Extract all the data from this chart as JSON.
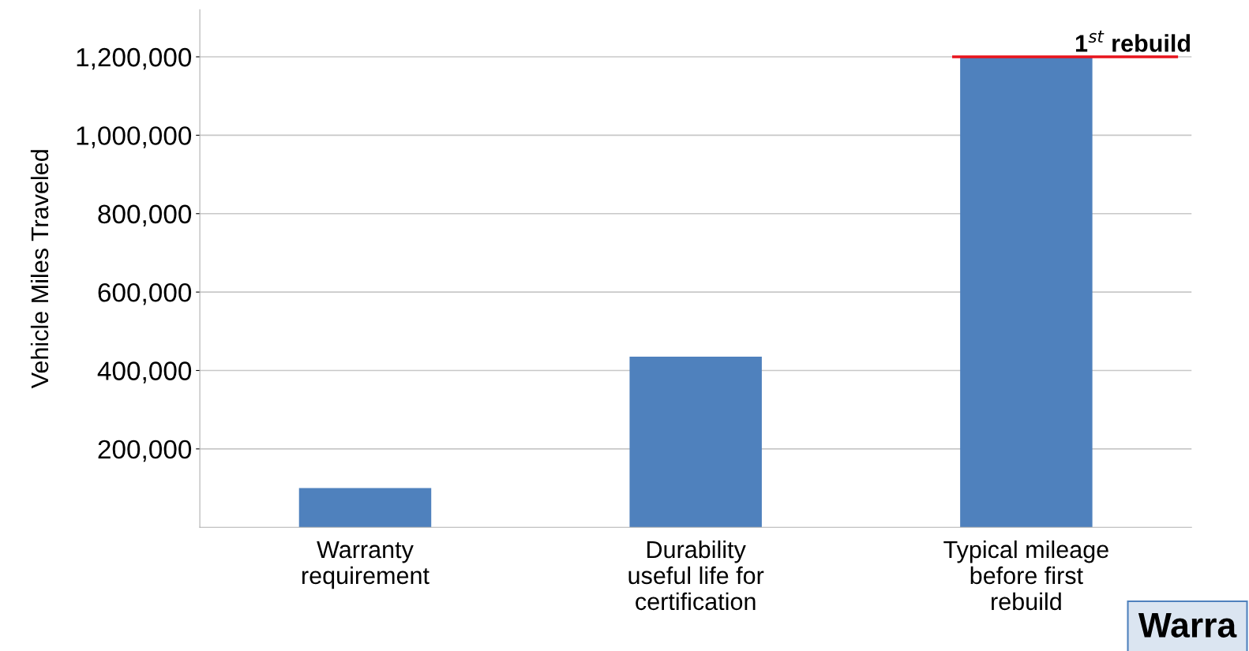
{
  "chart_data": {
    "type": "bar",
    "ylabel": "Vehicle Miles Traveled",
    "categories": [
      "Warranty\nrequirement",
      "Durability\nuseful life for\ncertification",
      "Typical mileage\nbefore first\nrebuild"
    ],
    "values": [
      100000,
      435000,
      1200000
    ],
    "color": "#4f81bd",
    "ylim": [
      0,
      1320000
    ],
    "yticks": [
      {
        "value": 200000,
        "label": "200,000"
      },
      {
        "value": 400000,
        "label": "400,000"
      },
      {
        "value": 600000,
        "label": "600,000"
      },
      {
        "value": 800000,
        "label": "800,000"
      },
      {
        "value": 1000000,
        "label": "1,000,000"
      },
      {
        "value": 1200000,
        "label": "1,200,000"
      }
    ],
    "grid": "y",
    "ref_lines": [
      {
        "axis": "y",
        "value": 1200000,
        "label": "1$^{st}$ rebuild",
        "color": "#e8141c"
      }
    ],
    "annotations": [
      "Warra"
    ]
  }
}
